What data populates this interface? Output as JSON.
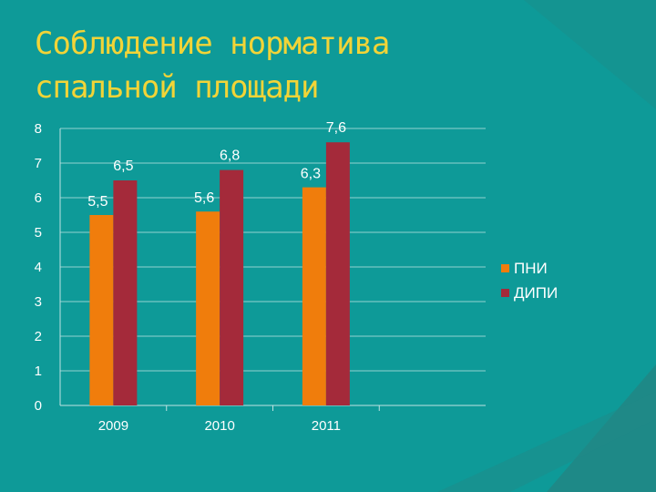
{
  "slide": {
    "title_line1": "Соблюдение норматива",
    "title_line2": "спальной площади"
  },
  "colors": {
    "background": "#0e9a98",
    "title": "#f2d437",
    "series_pni": "#f07d0c",
    "series_dipi": "#a42a3a",
    "gridline": "#bfe3e2"
  },
  "chart_data": {
    "type": "bar",
    "categories": [
      "2009",
      "2010",
      "2011"
    ],
    "series": [
      {
        "name": "ПНИ",
        "values": [
          5.5,
          5.6,
          6.3
        ],
        "labels": [
          "5,5",
          "5,6",
          "6,3"
        ]
      },
      {
        "name": "ДИПИ",
        "values": [
          6.5,
          6.8,
          7.6
        ],
        "labels": [
          "6,5",
          "6,8",
          "7,6"
        ]
      }
    ],
    "ylim": [
      0,
      8
    ],
    "yticks": [
      "0",
      "1",
      "2",
      "3",
      "4",
      "5",
      "6",
      "7",
      "8"
    ],
    "grid": true,
    "legend_position": "right"
  }
}
